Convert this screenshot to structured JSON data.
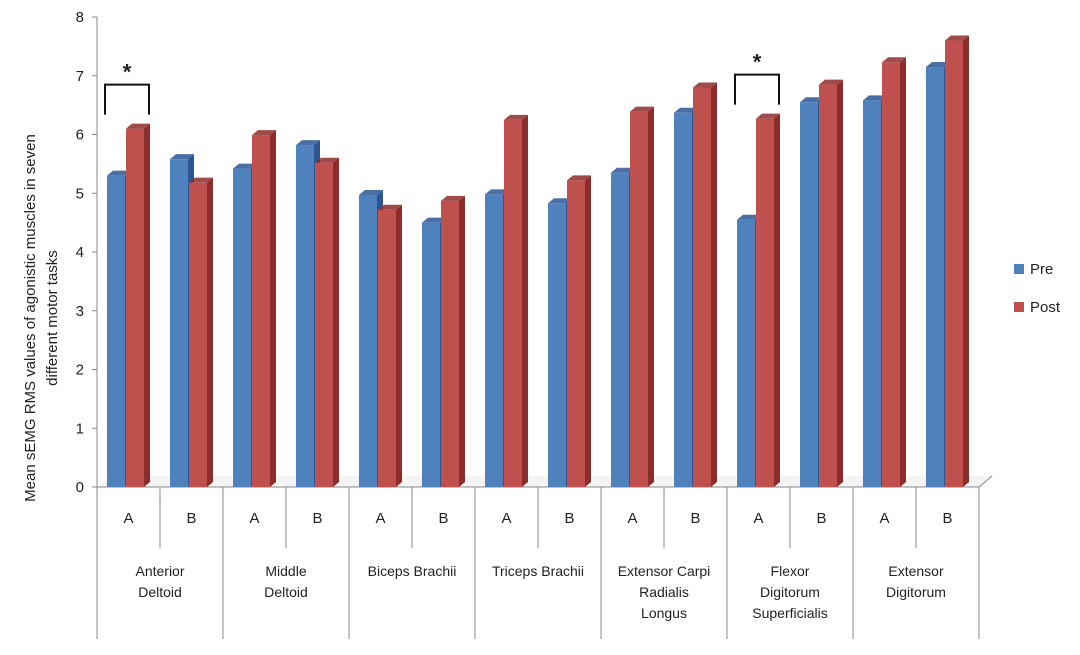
{
  "chart_data": {
    "type": "bar",
    "ylabel_lines": [
      "Mean sEMG RMS values of agonistic muscles in seven",
      "different motor  tasks"
    ],
    "ylim": [
      0,
      8
    ],
    "yticks": [
      "0",
      "1",
      "2",
      "3",
      "4",
      "5",
      "6",
      "7",
      "8"
    ],
    "groups": [
      {
        "label_lines": [
          "Anterior",
          "Deltoid"
        ],
        "subs": [
          "A",
          "B"
        ]
      },
      {
        "label_lines": [
          "Middle",
          "Deltoid"
        ],
        "subs": [
          "A",
          "B"
        ]
      },
      {
        "label_lines": [
          "Biceps Brachii"
        ],
        "subs": [
          "A",
          "B"
        ]
      },
      {
        "label_lines": [
          "Triceps Brachii"
        ],
        "subs": [
          "A",
          "B"
        ]
      },
      {
        "label_lines": [
          "Extensor Carpi",
          "Radialis",
          "Longus"
        ],
        "subs": [
          "A",
          "B"
        ]
      },
      {
        "label_lines": [
          "Flexor",
          "Digitorum",
          "Superficialis"
        ],
        "subs": [
          "A",
          "B"
        ]
      },
      {
        "label_lines": [
          "Extensor",
          "Digitorum"
        ],
        "subs": [
          "A",
          "B"
        ]
      }
    ],
    "series": [
      {
        "name": "Pre",
        "color": "#4F81BD",
        "side": "#2C5594",
        "values": [
          5.3,
          5.58,
          5.42,
          5.82,
          4.97,
          4.5,
          4.98,
          4.83,
          5.35,
          6.37,
          4.55,
          6.55,
          6.58,
          7.15
        ]
      },
      {
        "name": "Post",
        "color": "#C0504D",
        "side": "#8C2D2B",
        "values": [
          6.1,
          5.18,
          5.99,
          5.52,
          4.72,
          4.87,
          6.25,
          5.22,
          6.39,
          6.8,
          6.27,
          6.85,
          7.23,
          7.6
        ]
      }
    ],
    "significance": [
      {
        "bar_index": 0,
        "marker": "*"
      },
      {
        "bar_index": 10,
        "marker": "*"
      }
    ]
  }
}
